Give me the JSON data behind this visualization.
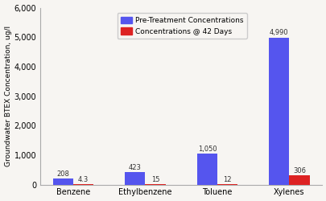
{
  "categories": [
    "Benzene",
    "Ethylbenzene",
    "Toluene",
    "Xylenes"
  ],
  "pre_treatment": [
    208,
    423,
    1050,
    4990
  ],
  "post_treatment": [
    4.3,
    15,
    12,
    306
  ],
  "pre_color": "#5555ee",
  "post_color": "#dd2222",
  "ylabel": "Groundwater BTEX Concentration, ug/l",
  "ylim": [
    0,
    6000
  ],
  "yticks": [
    0,
    1000,
    2000,
    3000,
    4000,
    5000,
    6000
  ],
  "ytick_labels": [
    "0",
    "1,000",
    "2,000",
    "3,000",
    "4,000",
    "5,000",
    "6,000"
  ],
  "legend_pre": "Pre-Treatment Concentrations",
  "legend_post": "Concentrations @ 42 Days",
  "bar_width": 0.28,
  "background_color": "#f7f5f2",
  "label_fontsize": 7.0,
  "annotation_fontsize": 6.0,
  "ylabel_fontsize": 6.5
}
